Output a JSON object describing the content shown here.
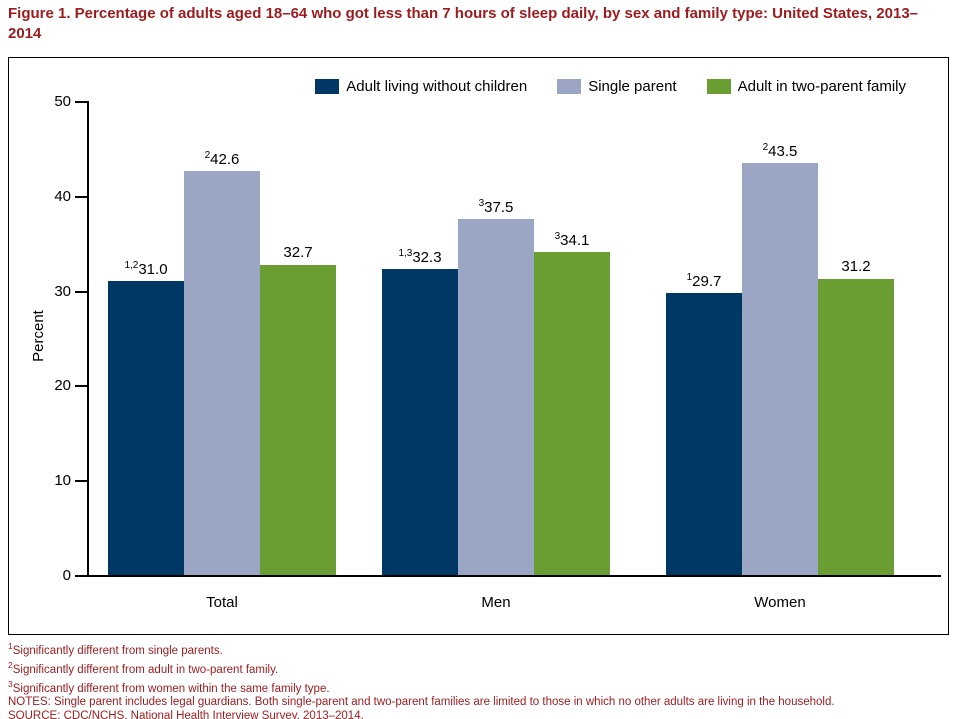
{
  "title": "Figure 1. Percentage of adults aged 18–64 who got less than 7 hours of sleep daily, by sex and family type: United States, 2013–2014",
  "colors": {
    "title_red": "#9c1b1e",
    "navy": "#003865",
    "periwinkle": "#9ba6c5",
    "green": "#6a9e33",
    "axis": "#000000"
  },
  "chart_data": {
    "type": "bar",
    "categories": [
      "Total",
      "Men",
      "Women"
    ],
    "series": [
      {
        "name": "Adult living without children",
        "color_key": "navy",
        "values": [
          31.0,
          32.3,
          29.7
        ],
        "labels": [
          {
            "sup": "1,2",
            "text": "31.0"
          },
          {
            "sup": "1,3",
            "text": "32.3"
          },
          {
            "sup": "1",
            "text": "29.7"
          }
        ]
      },
      {
        "name": "Single parent",
        "color_key": "periwinkle",
        "values": [
          42.6,
          37.5,
          43.5
        ],
        "labels": [
          {
            "sup": "2",
            "text": "42.6"
          },
          {
            "sup": "3",
            "text": "37.5"
          },
          {
            "sup": "2",
            "text": "43.5"
          }
        ]
      },
      {
        "name": "Adult in two-parent family",
        "color_key": "green",
        "values": [
          32.7,
          34.1,
          31.2
        ],
        "labels": [
          {
            "sup": "",
            "text": "32.7"
          },
          {
            "sup": "3",
            "text": "34.1"
          },
          {
            "sup": "",
            "text": "31.2"
          }
        ]
      }
    ],
    "ylabel": "Percent",
    "ylim": [
      0,
      50
    ],
    "yticks": [
      0,
      10,
      20,
      30,
      40,
      50
    ],
    "legend_position": "top"
  },
  "footnotes": [
    {
      "sup": "1",
      "text": "Significantly different from single parents."
    },
    {
      "sup": "2",
      "text": "Significantly different from adult in two-parent family."
    },
    {
      "sup": "3",
      "text": "Significantly different from women within the same family type."
    },
    {
      "sup": "",
      "text": "NOTES: Single parent includes legal guardians. Both single-parent and two-parent families are limited to those in which no other adults are living in the household."
    },
    {
      "sup": "",
      "text": "SOURCE: CDC/NCHS, National Health Interview Survey, 2013–2014."
    }
  ]
}
